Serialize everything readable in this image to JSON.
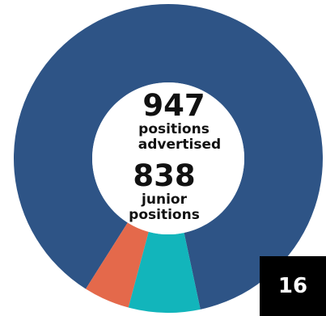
{
  "chart_data": {
    "type": "pie",
    "donut": true,
    "slices": [
      {
        "key": "main",
        "value": 82,
        "color": "#2e5486"
      },
      {
        "key": "orange",
        "value": 4.5,
        "color": "#e4694b"
      },
      {
        "key": "teal",
        "value": 7,
        "color": "#12b5bb"
      }
    ],
    "start_angle_deg": 168,
    "center_labels": {
      "number_1": "947",
      "label_1a": "positions",
      "label_1b": "advertised",
      "number_2": "838",
      "label_2a": "junior",
      "label_2b": "positions"
    }
  },
  "badge": {
    "page_number": "16",
    "color": "#000000"
  }
}
